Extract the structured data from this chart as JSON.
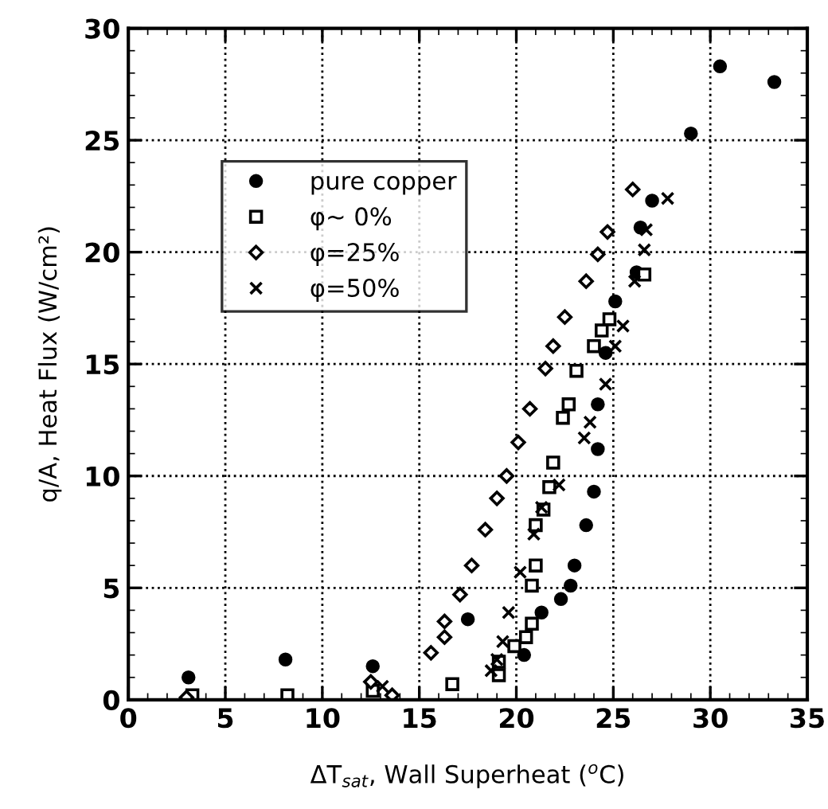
{
  "chart_data": {
    "type": "scatter",
    "xlabel": "ΔT$_{sat}$, Wall Superheat ($^{o}$C)",
    "ylabel": "q/A, Heat Flux (W/cm²)",
    "xlim": [
      0,
      35
    ],
    "ylim": [
      0,
      30
    ],
    "xticks": [
      0,
      5,
      10,
      15,
      20,
      25,
      30,
      35
    ],
    "yticks": [
      0,
      5,
      10,
      15,
      20,
      25,
      30
    ],
    "grid": true,
    "legend": "top left",
    "series": [
      {
        "name": "pure copper",
        "color": "#000000",
        "marker": "circle",
        "x": [
          3.1,
          8.1,
          12.6,
          17.5,
          20.4,
          21.3,
          22.3,
          22.8,
          23.0,
          23.6,
          24.0,
          24.2,
          24.2,
          24.6,
          25.1,
          26.2,
          26.4,
          27.0,
          29.0,
          30.5,
          33.3
        ],
        "values": [
          1.0,
          1.8,
          1.5,
          3.6,
          2.0,
          3.9,
          4.5,
          5.1,
          6.0,
          7.8,
          9.3,
          11.2,
          13.2,
          15.5,
          17.8,
          19.1,
          21.1,
          22.3,
          25.3,
          28.3,
          27.6
        ]
      },
      {
        "name": "φ~ 0%",
        "color": "#000000",
        "marker": "square",
        "x": [
          3.3,
          8.2,
          12.6,
          16.7,
          19.1,
          19.1,
          19.9,
          20.5,
          20.8,
          20.8,
          21.0,
          21.0,
          21.4,
          21.7,
          21.9,
          22.4,
          22.7,
          23.1,
          24.0,
          24.4,
          24.8,
          26.6
        ],
        "values": [
          0.2,
          0.2,
          0.4,
          0.7,
          1.1,
          1.7,
          2.4,
          2.8,
          3.4,
          5.1,
          6.0,
          7.8,
          8.5,
          9.5,
          10.6,
          12.6,
          13.2,
          14.7,
          15.8,
          16.5,
          17.0,
          19.0
        ]
      },
      {
        "name": "φ=25%",
        "color": "#000000",
        "marker": "diamond",
        "x": [
          3.0,
          12.5,
          13.6,
          15.6,
          16.3,
          16.3,
          17.1,
          17.7,
          18.4,
          19.0,
          19.5,
          20.1,
          20.7,
          21.5,
          21.9,
          22.5,
          23.6,
          24.2,
          24.7,
          26.0
        ],
        "values": [
          0.1,
          0.8,
          0.2,
          2.1,
          2.8,
          3.5,
          4.7,
          6.0,
          7.6,
          9.0,
          10.0,
          11.5,
          13.0,
          14.8,
          15.8,
          17.1,
          18.7,
          19.9,
          20.9,
          22.8
        ]
      },
      {
        "name": "φ=50%",
        "color": "#000000",
        "marker": "cross",
        "x": [
          13.1,
          18.7,
          19.0,
          19.3,
          19.6,
          20.2,
          20.9,
          21.3,
          22.2,
          23.5,
          23.8,
          24.6,
          25.1,
          25.5,
          26.1,
          26.6,
          26.7,
          27.8
        ],
        "values": [
          0.6,
          1.3,
          1.8,
          2.6,
          3.9,
          5.7,
          7.4,
          8.6,
          9.6,
          11.7,
          12.4,
          14.1,
          15.8,
          16.7,
          18.7,
          20.1,
          21.0,
          22.4
        ]
      }
    ]
  }
}
